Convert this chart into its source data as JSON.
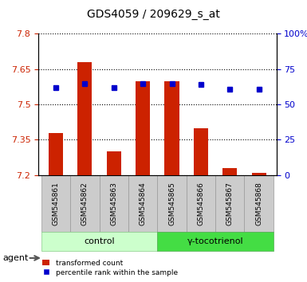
{
  "title": "GDS4059 / 209629_s_at",
  "samples": [
    "GSM545861",
    "GSM545862",
    "GSM545863",
    "GSM545864",
    "GSM545865",
    "GSM545866",
    "GSM545867",
    "GSM545868"
  ],
  "transformed_counts": [
    7.38,
    7.68,
    7.3,
    7.6,
    7.6,
    7.4,
    7.23,
    7.21
  ],
  "percentile_ranks": [
    62,
    65,
    62,
    65,
    65,
    64,
    61,
    61
  ],
  "bar_bottom": 7.2,
  "ylim_left": [
    7.2,
    7.8
  ],
  "ylim_right": [
    0,
    100
  ],
  "yticks_left": [
    7.2,
    7.35,
    7.5,
    7.65,
    7.8
  ],
  "yticks_right": [
    0,
    25,
    50,
    75,
    100
  ],
  "ytick_labels_left": [
    "7.2",
    "7.35",
    "7.5",
    "7.65",
    "7.8"
  ],
  "ytick_labels_right": [
    "0",
    "25",
    "50",
    "75",
    "100%"
  ],
  "bar_color": "#cc2200",
  "marker_color": "#0000cc",
  "left_tick_color": "#cc2200",
  "right_tick_color": "#0000cc",
  "groups": [
    {
      "label": "control",
      "samples": [
        "GSM545861",
        "GSM545862",
        "GSM545863",
        "GSM545864"
      ],
      "color": "#ccffcc",
      "edge_color": "#66cc66"
    },
    {
      "label": "γ-tocotrienol",
      "samples": [
        "GSM545865",
        "GSM545866",
        "GSM545867",
        "GSM545868"
      ],
      "color": "#44dd44",
      "edge_color": "#22aa22"
    }
  ],
  "legend_bar_label": "transformed count",
  "legend_marker_label": "percentile rank within the sample",
  "agent_label": "agent",
  "grid_color": "#000000",
  "bg_color": "#ffffff",
  "plot_bg_color": "#ffffff",
  "sample_bg_color": "#cccccc"
}
